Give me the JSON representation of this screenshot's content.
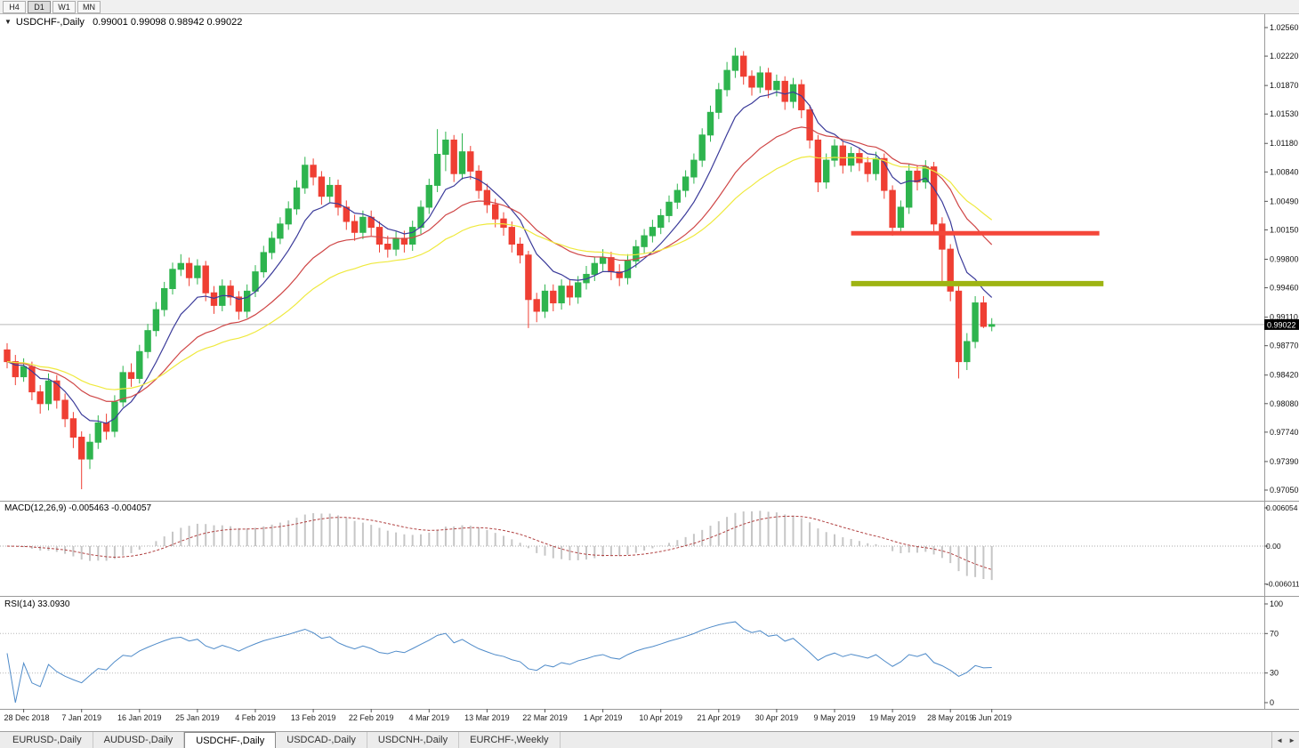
{
  "toolbar": {
    "timeframes": [
      {
        "label": "H4",
        "active": false
      },
      {
        "label": "D1",
        "active": true
      },
      {
        "label": "W1",
        "active": false
      },
      {
        "label": "MN",
        "active": false
      }
    ]
  },
  "chart_header": {
    "dropdown_icon": "▼",
    "line": "USDCHF-,Daily   0.99001 0.99098 0.98942 0.99022"
  },
  "price_axis": {
    "ticks": [
      "1.02560",
      "1.02220",
      "1.01870",
      "1.01530",
      "1.01180",
      "1.00840",
      "1.00490",
      "1.00150",
      "0.99800",
      "0.99460",
      "0.99110",
      "0.98770",
      "0.98420",
      "0.98080",
      "0.97740",
      "0.97390",
      "0.97050"
    ],
    "current": "0.99022"
  },
  "chart_data": {
    "type": "candlestick",
    "symbol": "USDCHF-",
    "timeframe": "Daily",
    "ohlc_display": {
      "open": "0.99001",
      "high": "0.99098",
      "low": "0.98942",
      "close": "0.99022"
    },
    "ylim": [
      0.9705,
      1.0256
    ],
    "candles": [
      [
        0.9872,
        0.988,
        0.985,
        0.9858
      ],
      [
        0.9858,
        0.9866,
        0.983,
        0.984
      ],
      [
        0.984,
        0.9862,
        0.9834,
        0.9852
      ],
      [
        0.9852,
        0.9858,
        0.9812,
        0.9822
      ],
      [
        0.9822,
        0.983,
        0.9796,
        0.9808
      ],
      [
        0.9808,
        0.9844,
        0.98,
        0.9835
      ],
      [
        0.9835,
        0.9842,
        0.9802,
        0.9812
      ],
      [
        0.9812,
        0.982,
        0.978,
        0.979
      ],
      [
        0.979,
        0.9798,
        0.9755,
        0.9768
      ],
      [
        0.9768,
        0.9775,
        0.9706,
        0.9742
      ],
      [
        0.9742,
        0.9772,
        0.973,
        0.9762
      ],
      [
        0.9762,
        0.9794,
        0.9754,
        0.9785
      ],
      [
        0.9785,
        0.9796,
        0.9765,
        0.9775
      ],
      [
        0.9775,
        0.9818,
        0.9768,
        0.981
      ],
      [
        0.981,
        0.9853,
        0.9804,
        0.9845
      ],
      [
        0.9845,
        0.9856,
        0.9828,
        0.9838
      ],
      [
        0.9838,
        0.9878,
        0.9832,
        0.987
      ],
      [
        0.987,
        0.9903,
        0.9862,
        0.9895
      ],
      [
        0.9895,
        0.9929,
        0.9888,
        0.992
      ],
      [
        0.992,
        0.9953,
        0.9912,
        0.9945
      ],
      [
        0.9945,
        0.9976,
        0.9938,
        0.9968
      ],
      [
        0.9968,
        0.9986,
        0.996,
        0.9975
      ],
      [
        0.9975,
        0.9982,
        0.9948,
        0.9958
      ],
      [
        0.9958,
        0.998,
        0.995,
        0.9972
      ],
      [
        0.9972,
        0.9978,
        0.993,
        0.994
      ],
      [
        0.994,
        0.9948,
        0.9915,
        0.9925
      ],
      [
        0.9925,
        0.9956,
        0.9918,
        0.9948
      ],
      [
        0.9948,
        0.9955,
        0.9925,
        0.9935
      ],
      [
        0.9935,
        0.9942,
        0.9908,
        0.9918
      ],
      [
        0.9918,
        0.995,
        0.991,
        0.9942
      ],
      [
        0.9942,
        0.9973,
        0.9935,
        0.9965
      ],
      [
        0.9965,
        0.9996,
        0.9958,
        0.9988
      ],
      [
        0.9988,
        1.0013,
        0.998,
        1.0005
      ],
      [
        1.0005,
        1.003,
        0.9998,
        1.0022
      ],
      [
        1.0022,
        1.0049,
        1.0015,
        1.004
      ],
      [
        1.004,
        1.0074,
        1.0033,
        1.0065
      ],
      [
        1.0065,
        1.0102,
        1.0058,
        1.0092
      ],
      [
        1.0092,
        1.01,
        1.0068,
        1.0078
      ],
      [
        1.0078,
        1.0085,
        1.0045,
        1.0055
      ],
      [
        1.0055,
        1.0078,
        1.0048,
        1.0068
      ],
      [
        1.0068,
        1.0075,
        1.0032,
        1.0042
      ],
      [
        1.0042,
        1.005,
        1.0015,
        1.0025
      ],
      [
        1.0025,
        1.0033,
        1.0002,
        1.0012
      ],
      [
        1.0012,
        1.0038,
        1.0004,
        1.003
      ],
      [
        1.003,
        1.0038,
        1.0008,
        1.0018
      ],
      [
        1.0018,
        1.0025,
        0.9988,
        0.9998
      ],
      [
        0.9998,
        1.0008,
        0.9982,
        0.9992
      ],
      [
        0.9992,
        1.0013,
        0.9984,
        1.0005
      ],
      [
        1.0005,
        1.0014,
        0.9988,
        0.9998
      ],
      [
        0.9998,
        1.0026,
        0.999,
        1.0018
      ],
      [
        1.0018,
        1.005,
        1.001,
        1.0042
      ],
      [
        1.0042,
        1.0076,
        1.0034,
        1.0068
      ],
      [
        1.0068,
        1.0135,
        1.006,
        1.0105
      ],
      [
        1.0105,
        1.0132,
        1.0085,
        1.0122
      ],
      [
        1.0122,
        1.0128,
        1.0072,
        1.0082
      ],
      [
        1.0082,
        1.013,
        1.0075,
        1.0108
      ],
      [
        1.0108,
        1.0115,
        1.0075,
        1.0085
      ],
      [
        1.0085,
        1.0092,
        1.0052,
        1.0062
      ],
      [
        1.0062,
        1.007,
        1.0035,
        1.0045
      ],
      [
        1.0045,
        1.0052,
        1.0018,
        1.0028
      ],
      [
        1.0028,
        1.0036,
        1.0008,
        1.0018
      ],
      [
        1.0018,
        1.0025,
        0.9988,
        0.9998
      ],
      [
        0.9998,
        1.0006,
        0.9975,
        0.9985
      ],
      [
        0.9985,
        0.999,
        0.9898,
        0.9932
      ],
      [
        0.9932,
        0.994,
        0.9905,
        0.9918
      ],
      [
        0.9918,
        0.995,
        0.991,
        0.9942
      ],
      [
        0.9942,
        0.995,
        0.9918,
        0.9928
      ],
      [
        0.9928,
        0.9956,
        0.992,
        0.9948
      ],
      [
        0.9948,
        0.9955,
        0.9925,
        0.9935
      ],
      [
        0.9935,
        0.996,
        0.9927,
        0.9952
      ],
      [
        0.9952,
        0.9972,
        0.9944,
        0.9962
      ],
      [
        0.9962,
        0.9983,
        0.9954,
        0.9975
      ],
      [
        0.9975,
        0.9992,
        0.9966,
        0.9982
      ],
      [
        0.9982,
        0.9989,
        0.9955,
        0.9965
      ],
      [
        0.9965,
        0.9974,
        0.9948,
        0.9958
      ],
      [
        0.9958,
        0.9986,
        0.995,
        0.9978
      ],
      [
        0.9978,
        1.0003,
        0.997,
        0.9995
      ],
      [
        0.9995,
        1.0016,
        0.9987,
        1.0008
      ],
      [
        1.0008,
        1.0027,
        1.0,
        1.0018
      ],
      [
        1.0018,
        1.004,
        1.001,
        1.0032
      ],
      [
        1.0032,
        1.0056,
        1.0024,
        1.0048
      ],
      [
        1.0048,
        1.007,
        1.004,
        1.0062
      ],
      [
        1.0062,
        1.0086,
        1.0054,
        1.0078
      ],
      [
        1.0078,
        1.0106,
        1.007,
        1.0098
      ],
      [
        1.0098,
        1.0136,
        1.009,
        1.0128
      ],
      [
        1.0128,
        1.0163,
        1.012,
        1.0155
      ],
      [
        1.0155,
        1.019,
        1.0147,
        1.0182
      ],
      [
        1.0182,
        1.0215,
        1.0174,
        1.0205
      ],
      [
        1.0205,
        1.0232,
        1.0196,
        1.0222
      ],
      [
        1.0222,
        1.0228,
        1.0188,
        1.0198
      ],
      [
        1.0198,
        1.0205,
        1.0175,
        1.0185
      ],
      [
        1.0185,
        1.021,
        1.0178,
        1.0202
      ],
      [
        1.0202,
        1.0208,
        1.0172,
        1.0182
      ],
      [
        1.0182,
        1.02,
        1.0174,
        1.0192
      ],
      [
        1.0192,
        1.0198,
        1.0158,
        1.0168
      ],
      [
        1.0168,
        1.0196,
        1.016,
        1.0188
      ],
      [
        1.0188,
        1.0194,
        1.0148,
        1.0158
      ],
      [
        1.0158,
        1.0164,
        1.0112,
        1.0122
      ],
      [
        1.0122,
        1.0128,
        1.006,
        1.0072
      ],
      [
        1.0072,
        1.0106,
        1.0064,
        1.0098
      ],
      [
        1.0098,
        1.0123,
        1.009,
        1.0115
      ],
      [
        1.0115,
        1.0121,
        1.0082,
        1.0092
      ],
      [
        1.0092,
        1.0114,
        1.0084,
        1.0106
      ],
      [
        1.0106,
        1.0113,
        1.0085,
        1.0095
      ],
      [
        1.0095,
        1.0102,
        1.0072,
        1.0082
      ],
      [
        1.0082,
        1.0108,
        1.0074,
        1.01
      ],
      [
        1.01,
        1.0106,
        1.0052,
        1.0062
      ],
      [
        1.0062,
        1.0068,
        1.0008,
        1.0018
      ],
      [
        1.0018,
        1.005,
        1.001,
        1.0042
      ],
      [
        1.0042,
        1.0093,
        1.0034,
        1.0085
      ],
      [
        1.0085,
        1.0092,
        1.0062,
        1.0072
      ],
      [
        1.0072,
        1.0098,
        1.0064,
        1.009
      ],
      [
        1.009,
        1.0096,
        1.0012,
        1.0022
      ],
      [
        1.0022,
        1.003,
        0.9952,
        0.9992
      ],
      [
        0.9992,
        0.9998,
        0.993,
        0.9942
      ],
      [
        0.9942,
        0.9948,
        0.9838,
        0.9858
      ],
      [
        0.9858,
        0.9892,
        0.9848,
        0.9882
      ],
      [
        0.9882,
        0.9936,
        0.9874,
        0.9928
      ],
      [
        0.9928,
        0.9936,
        0.9898,
        0.99
      ],
      [
        0.99001,
        0.99098,
        0.98942,
        0.99022
      ]
    ],
    "date_ticks": [
      {
        "index": 2,
        "label": "28 Dec 2018"
      },
      {
        "index": 9,
        "label": "7 Jan 2019"
      },
      {
        "index": 16,
        "label": "16 Jan 2019"
      },
      {
        "index": 23,
        "label": "25 Jan 2019"
      },
      {
        "index": 30,
        "label": "4 Feb 2019"
      },
      {
        "index": 37,
        "label": "13 Feb 2019"
      },
      {
        "index": 44,
        "label": "22 Feb 2019"
      },
      {
        "index": 51,
        "label": "4 Mar 2019"
      },
      {
        "index": 58,
        "label": "13 Mar 2019"
      },
      {
        "index": 65,
        "label": "22 Mar 2019"
      },
      {
        "index": 72,
        "label": "1 Apr 2019"
      },
      {
        "index": 79,
        "label": "10 Apr 2019"
      },
      {
        "index": 86,
        "label": "21 Apr 2019"
      },
      {
        "index": 93,
        "label": "30 Apr 2019"
      },
      {
        "index": 100,
        "label": "9 May 2019"
      },
      {
        "index": 107,
        "label": "19 May 2019"
      },
      {
        "index": 114,
        "label": "28 May 2019"
      },
      {
        "index": 119,
        "label": "6 Jun 2019"
      }
    ],
    "moving_averages": [
      {
        "period": 8,
        "color": "#3b3b9a"
      },
      {
        "period": 20,
        "color": "#cf4646"
      },
      {
        "period": 34,
        "color": "#efe93d"
      }
    ],
    "hlines": [
      {
        "name": "resistance-line-red",
        "price": 1.0011,
        "color": "#f4473a",
        "width": 5,
        "from_bar": 102,
        "to_bar": 132
      },
      {
        "name": "support-line-olive",
        "price": 0.9951,
        "color": "#9eb412",
        "width": 6,
        "from_bar": 102,
        "to_bar": 132.5
      }
    ],
    "macd": {
      "label": "MACD(12,26,9) -0.005463 -0.004057",
      "fast": 12,
      "slow": 26,
      "signal": 9,
      "axis": [
        {
          "label": "0.006054",
          "value": 0.006054
        },
        {
          "label": "0.00",
          "value": 0
        },
        {
          "label": "-0.006011",
          "value": -0.006011
        }
      ]
    },
    "rsi": {
      "label": "RSI(14) 33.0930",
      "period": 14,
      "levels": [
        "100",
        "70",
        "30",
        "0"
      ]
    }
  },
  "colors": {
    "up": "#2eb44e",
    "down": "#ef3f33",
    "macd_hist": "#c6c6c6",
    "macd_signal": "#b04040",
    "rsi_line": "#4f8bc9",
    "current_price_line": "#b9b9b9"
  },
  "tabs": {
    "items": [
      {
        "label": "EURUSD-,Daily",
        "active": false
      },
      {
        "label": "AUDUSD-,Daily",
        "active": false
      },
      {
        "label": "USDCHF-,Daily",
        "active": true
      },
      {
        "label": "USDCAD-,Daily",
        "active": false
      },
      {
        "label": "USDCNH-,Daily",
        "active": false
      },
      {
        "label": "EURCHF-,Weekly",
        "active": false
      }
    ],
    "scroll_left": "◄",
    "scroll_right": "►"
  }
}
